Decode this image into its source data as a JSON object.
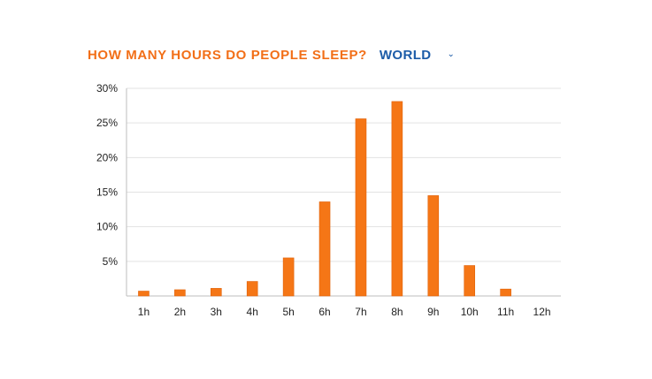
{
  "header": {
    "title": "HOW MANY HOURS DO PEOPLE SLEEP?",
    "region": "WORLD",
    "dropdown_icon": "chevron-down-icon"
  },
  "colors": {
    "bar": "#f57616",
    "bar_edge": "#e0620a",
    "title": "#f26f18",
    "region": "#1c5ca8",
    "grid": "#e3e3e3",
    "axis": "#bdbdbd"
  },
  "chart_data": {
    "type": "bar",
    "title": "HOW MANY HOURS DO PEOPLE SLEEP?",
    "xlabel": "",
    "ylabel": "",
    "categories": [
      "1h",
      "2h",
      "3h",
      "4h",
      "5h",
      "6h",
      "7h",
      "8h",
      "9h",
      "10h",
      "11h",
      "12h"
    ],
    "values": [
      0.7,
      0.9,
      1.1,
      2.1,
      5.5,
      13.6,
      25.6,
      28.1,
      14.5,
      4.4,
      1.0,
      0.0
    ],
    "ylim": [
      0,
      30
    ],
    "yticks": [
      {
        "value": 5,
        "label": "5%"
      },
      {
        "value": 10,
        "label": "10%"
      },
      {
        "value": 15,
        "label": "15%"
      },
      {
        "value": 20,
        "label": "20%"
      },
      {
        "value": 25,
        "label": "25%"
      },
      {
        "value": 30,
        "label": "30%"
      }
    ],
    "grid": true,
    "legend": "none"
  }
}
